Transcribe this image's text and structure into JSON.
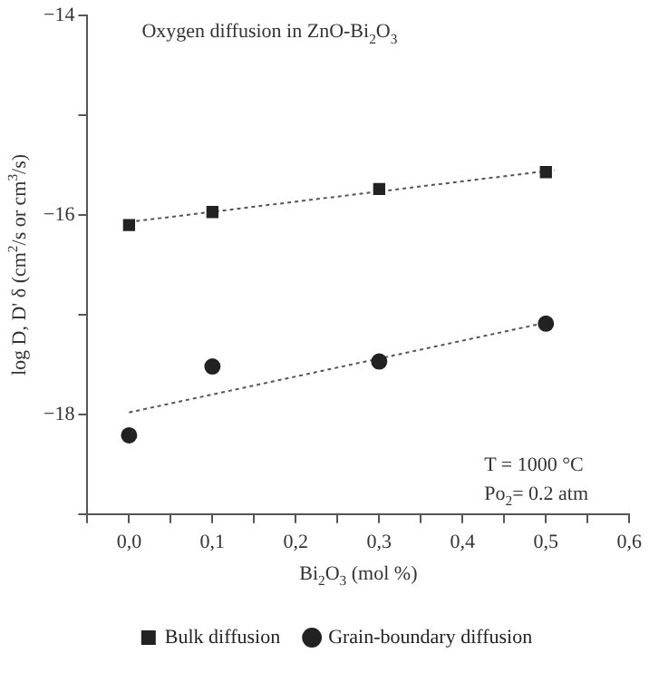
{
  "chart_data": {
    "type": "scatter",
    "title": "Oxygen diffusion in ZnO-Bi$_{2}$O$_{3}$",
    "xlabel": "Bi$_{2}$O$_{3}$ (mol %)",
    "ylabel": "log D, D' δ (cm$^{2}$/s or cm$^{3}$/s)",
    "annotations": [
      "T = 1000 °C",
      "Po$_{2}$= 0.2 atm"
    ],
    "series": [
      {
        "name": "Bulk diffusion",
        "color": "#222222",
        "marker": "square",
        "x": [
          0,
          0.1,
          0.3,
          0.5
        ],
        "values": [
          -16.1,
          -15.97,
          -15.74,
          -15.57
        ]
      },
      {
        "name": "Grain-boundary diffusion",
        "color": "#222222",
        "marker": "circle",
        "x": [
          0,
          0.1,
          0.3,
          0.5
        ],
        "values": [
          -18.21,
          -17.52,
          -17.47,
          -17.09
        ]
      },
      {
        "type": "line",
        "color": "#555555",
        "marker": "none",
        "line_style": "dotted",
        "x": [
          0,
          0.51
        ],
        "values": [
          -16.07,
          -15.55
        ]
      },
      {
        "type": "line",
        "color": "#555555",
        "marker": "none",
        "line_style": "dotted",
        "x": [
          0,
          0.5
        ],
        "values": [
          -17.98,
          -17.08
        ]
      }
    ],
    "xlim": [
      -0.05,
      0.6
    ],
    "ylim": [
      -19,
      -14
    ],
    "xticks": [
      {
        "value": -0.05,
        "label": null
      },
      {
        "value": 0,
        "label": "0,0"
      },
      {
        "value": 0.05,
        "label": null
      },
      {
        "value": 0.1,
        "label": "0,1"
      },
      {
        "value": 0.15,
        "label": null
      },
      {
        "value": 0.2,
        "label": "0,2"
      },
      {
        "value": 0.25,
        "label": null
      },
      {
        "value": 0.3,
        "label": "0,3"
      },
      {
        "value": 0.35,
        "label": null
      },
      {
        "value": 0.4,
        "label": "0,4"
      },
      {
        "value": 0.45,
        "label": null
      },
      {
        "value": 0.5,
        "label": "0,5"
      },
      {
        "value": 0.55,
        "label": null
      },
      {
        "value": 0.6,
        "label": "0,6"
      }
    ],
    "yticks": [
      {
        "value": -19,
        "label": null
      },
      {
        "value": -18,
        "label": "−18"
      },
      {
        "value": -17,
        "label": null
      },
      {
        "value": -16,
        "label": "−16"
      },
      {
        "value": -15,
        "label": null
      },
      {
        "value": -14,
        "label": "−14"
      }
    ],
    "grid": false,
    "legend": "bottom"
  }
}
